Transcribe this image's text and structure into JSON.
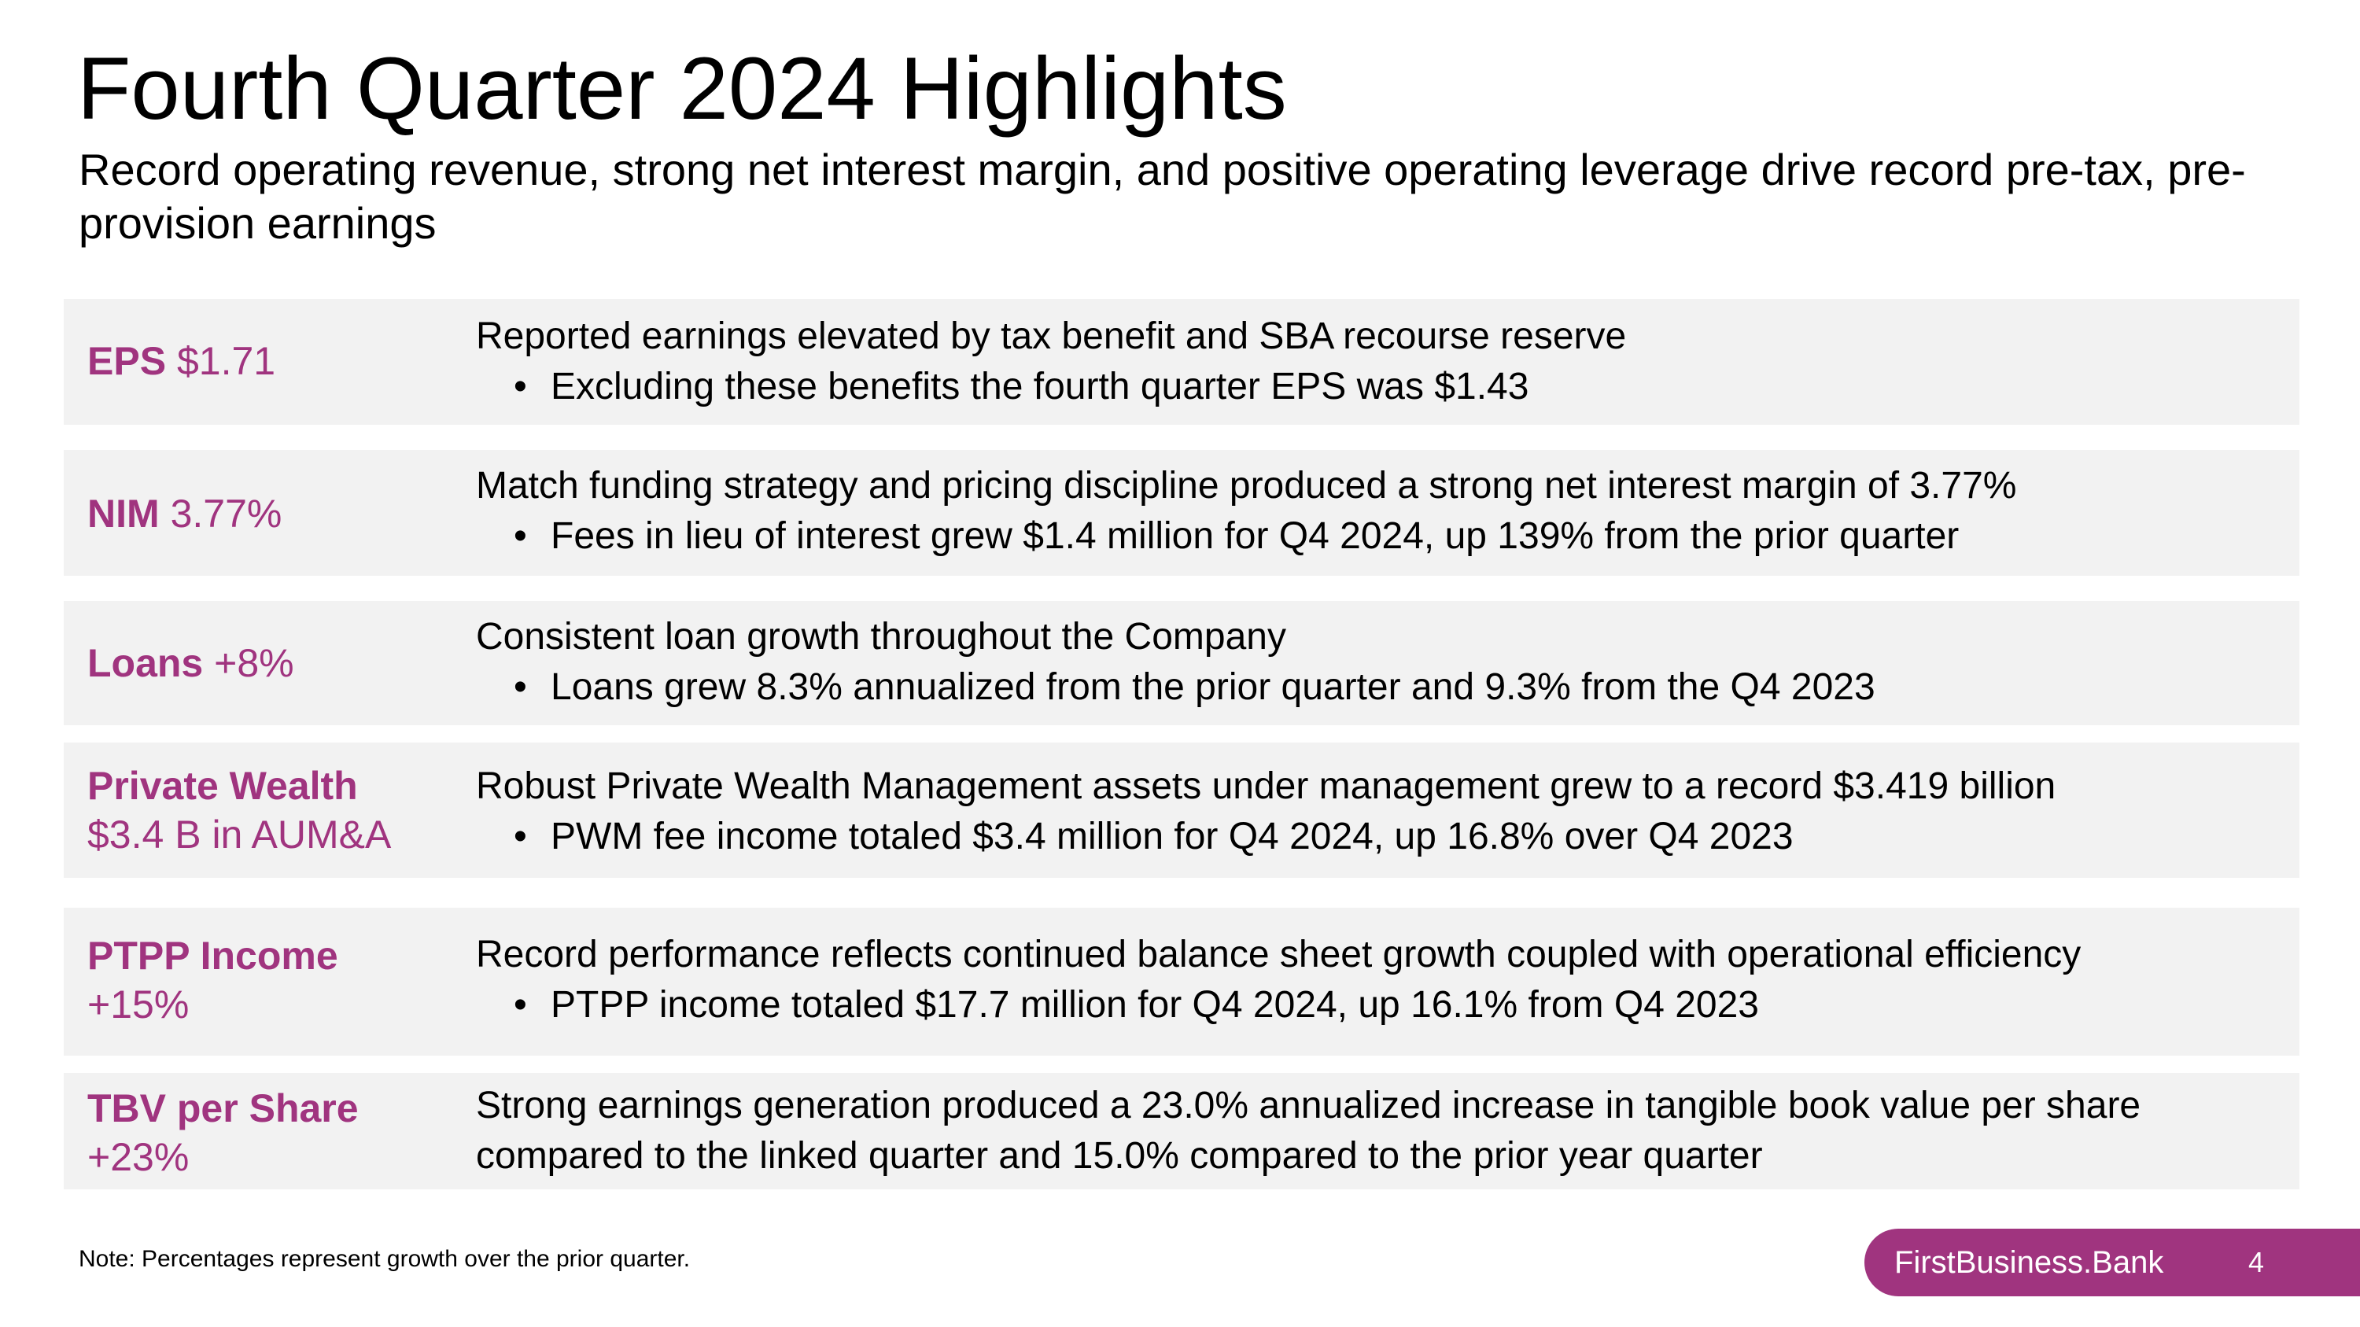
{
  "title": "Fourth Quarter 2024 Highlights",
  "subtitle": "Record operating revenue, strong net interest margin, and positive operating leverage drive record pre-tax, pre-provision earnings",
  "colors": {
    "accent": "#a0347f",
    "row_background": "#f2f2f2",
    "text": "#000000"
  },
  "highlights": [
    {
      "metric": "EPS",
      "value": "$1.71",
      "main": "Reported earnings elevated by tax benefit and SBA recourse reserve",
      "bullet": "Excluding these benefits the fourth quarter EPS was $1.43"
    },
    {
      "metric": "NIM",
      "value": "3.77%",
      "main": "Match funding strategy and pricing discipline produced a strong net interest margin of 3.77%",
      "bullet": "Fees in lieu of interest grew $1.4 million for Q4 2024, up 139% from the prior quarter"
    },
    {
      "metric": "Loans",
      "value": "+8%",
      "main": "Consistent loan growth throughout the Company",
      "bullet": "Loans grew 8.3% annualized from the prior quarter and 9.3% from the Q4 2023"
    },
    {
      "metric": "Private Wealth",
      "value": "$3.4 B in AUM&A",
      "main": "Robust Private Wealth Management assets under management grew to a record $3.419 billion",
      "bullet": "PWM fee income totaled $3.4 million for Q4 2024, up 16.8% over Q4 2023"
    },
    {
      "metric": "PTPP Income",
      "value": "+15%",
      "main": "Record performance reflects continued balance sheet growth coupled with operational efficiency",
      "bullet": "PTPP income totaled $17.7 million for Q4 2024, up 16.1% from Q4 2023"
    },
    {
      "metric": "TBV per Share",
      "value": "+23%",
      "main": "Strong earnings generation produced a 23.0% annualized increase in tangible book value per share compared to the linked quarter and 15.0% compared to the prior year quarter"
    }
  ],
  "note": "Note: Percentages represent growth over the prior quarter.",
  "footer": {
    "brand": "FirstBusiness.Bank",
    "page_number": "4"
  }
}
